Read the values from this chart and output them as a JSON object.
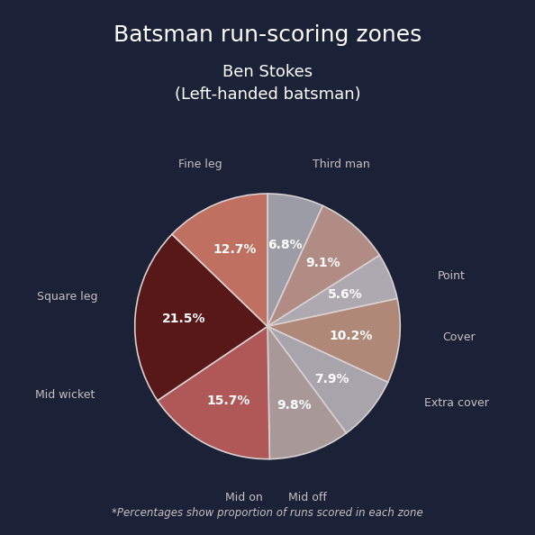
{
  "title": "Batsman run-scoring zones",
  "subtitle": "Ben Stokes\n(Left-handed batsman)",
  "footnote": "*Percentages show proportion of runs scored in each zone",
  "background_color": "#1b2237",
  "zones": [
    {
      "label": "Fine leg",
      "pct": 6.8,
      "color": "#9c9ca6"
    },
    {
      "label": "Third man",
      "pct": 9.1,
      "color": "#b08c84"
    },
    {
      "label": "Point",
      "pct": 5.6,
      "color": "#aea8b0"
    },
    {
      "label": "Cover",
      "pct": 10.2,
      "color": "#b08878"
    },
    {
      "label": "Extra cover",
      "pct": 7.9,
      "color": "#a8a4ac"
    },
    {
      "label": "Mid off",
      "pct": 9.8,
      "color": "#a89898"
    },
    {
      "label": "Mid on",
      "pct": 15.7,
      "color": "#b05858"
    },
    {
      "label": "Mid wicket",
      "pct": 21.5,
      "color": "#581818"
    },
    {
      "label": "Square leg",
      "pct": 12.7,
      "color": "#c07060"
    }
  ],
  "text_color": "#ffffff",
  "label_color": "#c8c0c0",
  "wedge_edge_color": "#d8d0d0",
  "wedge_edge_width": 1.2,
  "title_fontsize": 18,
  "subtitle_fontsize": 13,
  "pct_fontsize": 10,
  "label_fontsize": 9,
  "footnote_fontsize": 8.5
}
